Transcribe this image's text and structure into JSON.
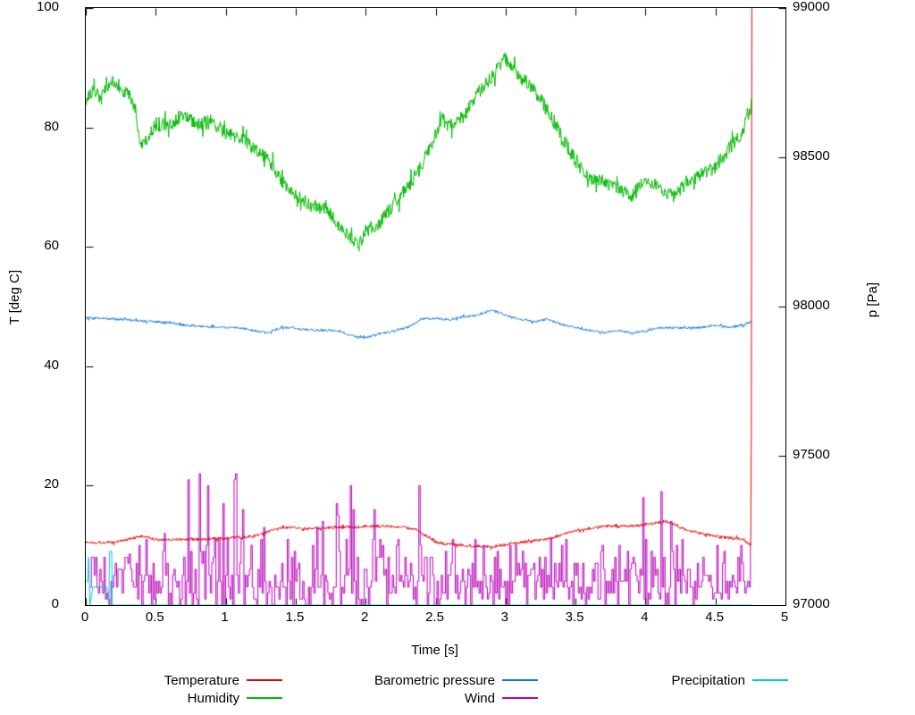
{
  "window": {
    "background": "#ffffff"
  },
  "chart_data": {
    "type": "line",
    "title": "",
    "xlabel": "Time [s]",
    "ylabel": "T [deg C]",
    "y2label": "p [Pa]",
    "xlim": [
      0,
      5
    ],
    "ylim": [
      0,
      100
    ],
    "y2lim": [
      97000,
      99000
    ],
    "grid": false,
    "xticks": {
      "values": [
        0,
        0.5,
        1,
        1.5,
        2,
        2.5,
        3,
        3.5,
        4,
        4.5,
        5
      ],
      "labels": [
        "0",
        "0.5",
        "1",
        "1.5",
        "2",
        "2.5",
        "3",
        "3.5",
        "4",
        "4.5",
        "5"
      ]
    },
    "yticks": {
      "values": [
        0,
        20,
        40,
        60,
        80,
        100
      ],
      "labels": [
        "0",
        "20",
        "40",
        "60",
        "80",
        "100"
      ]
    },
    "y2ticks": {
      "values": [
        97000,
        97500,
        98000,
        98500,
        99000
      ],
      "labels": [
        "97000",
        "97500",
        "98000",
        "98500",
        "99000"
      ]
    },
    "series": [
      {
        "name": "Temperature",
        "color": "#e60000",
        "axis": "y1",
        "style": "noisy-line",
        "noise": 0.25,
        "keypoints": [
          [
            0,
            10.5
          ],
          [
            0.2,
            10.5
          ],
          [
            0.4,
            11.5
          ],
          [
            0.5,
            11
          ],
          [
            0.8,
            11
          ],
          [
            1,
            11.2
          ],
          [
            1.2,
            11.5
          ],
          [
            1.4,
            13
          ],
          [
            1.6,
            12.8
          ],
          [
            1.8,
            13
          ],
          [
            2,
            13.2
          ],
          [
            2.2,
            13.2
          ],
          [
            2.35,
            12.8
          ],
          [
            2.5,
            10.5
          ],
          [
            2.7,
            10
          ],
          [
            2.9,
            9.8
          ],
          [
            3.1,
            10.5
          ],
          [
            3.3,
            11
          ],
          [
            3.5,
            12.5
          ],
          [
            3.7,
            13.2
          ],
          [
            3.9,
            13.2
          ],
          [
            4.15,
            14
          ],
          [
            4.3,
            12.5
          ],
          [
            4.5,
            11.5
          ],
          [
            4.7,
            11
          ],
          [
            4.74,
            10.2
          ],
          [
            4.755,
            10
          ],
          [
            4.76,
            100
          ]
        ]
      },
      {
        "name": "Humidity",
        "color": "#00b800",
        "axis": "y1",
        "style": "noisy-line",
        "noise": 1.2,
        "keypoints": [
          [
            0,
            84.5
          ],
          [
            0.05,
            86
          ],
          [
            0.1,
            85.5
          ],
          [
            0.15,
            87
          ],
          [
            0.2,
            88
          ],
          [
            0.25,
            86.5
          ],
          [
            0.3,
            85.5
          ],
          [
            0.35,
            83.5
          ],
          [
            0.4,
            76.5
          ],
          [
            0.45,
            78.5
          ],
          [
            0.5,
            80.5
          ],
          [
            0.6,
            80.5
          ],
          [
            0.7,
            82
          ],
          [
            0.8,
            80.5
          ],
          [
            0.9,
            81
          ],
          [
            1,
            79
          ],
          [
            1.1,
            78.5
          ],
          [
            1.2,
            76.5
          ],
          [
            1.3,
            75
          ],
          [
            1.4,
            71
          ],
          [
            1.5,
            68.5
          ],
          [
            1.6,
            67
          ],
          [
            1.7,
            66.5
          ],
          [
            1.8,
            64
          ],
          [
            1.9,
            61.5
          ],
          [
            1.95,
            60
          ],
          [
            2,
            62.5
          ],
          [
            2.1,
            64
          ],
          [
            2.2,
            67
          ],
          [
            2.3,
            70
          ],
          [
            2.4,
            73.5
          ],
          [
            2.5,
            79
          ],
          [
            2.55,
            81.5
          ],
          [
            2.6,
            80
          ],
          [
            2.7,
            82
          ],
          [
            2.8,
            85.5
          ],
          [
            2.9,
            88.5
          ],
          [
            3,
            91.5
          ],
          [
            3.1,
            88.5
          ],
          [
            3.2,
            86.5
          ],
          [
            3.3,
            83
          ],
          [
            3.4,
            78.5
          ],
          [
            3.5,
            74.5
          ],
          [
            3.6,
            71.5
          ],
          [
            3.7,
            71
          ],
          [
            3.8,
            70
          ],
          [
            3.9,
            68.5
          ],
          [
            4,
            71.5
          ],
          [
            4.1,
            70
          ],
          [
            4.2,
            68.5
          ],
          [
            4.3,
            71
          ],
          [
            4.4,
            72
          ],
          [
            4.5,
            73.5
          ],
          [
            4.6,
            76.5
          ],
          [
            4.7,
            79.5
          ],
          [
            4.76,
            84
          ]
        ]
      },
      {
        "name": "Barometric pressure",
        "color": "#1177dd",
        "axis": "y2",
        "style": "noisy-line",
        "noise": 4,
        "keypoints": [
          [
            0,
            97962
          ],
          [
            0.2,
            97958
          ],
          [
            0.4,
            97952
          ],
          [
            0.6,
            97946
          ],
          [
            0.7,
            97938
          ],
          [
            0.9,
            97932
          ],
          [
            1.1,
            97928
          ],
          [
            1.3,
            97912
          ],
          [
            1.4,
            97930
          ],
          [
            1.6,
            97922
          ],
          [
            1.8,
            97920
          ],
          [
            1.9,
            97902
          ],
          [
            2,
            97896
          ],
          [
            2.1,
            97908
          ],
          [
            2.3,
            97930
          ],
          [
            2.4,
            97958
          ],
          [
            2.5,
            97960
          ],
          [
            2.6,
            97956
          ],
          [
            2.7,
            97966
          ],
          [
            2.8,
            97972
          ],
          [
            2.9,
            97988
          ],
          [
            3,
            97972
          ],
          [
            3.1,
            97958
          ],
          [
            3.2,
            97950
          ],
          [
            3.3,
            97958
          ],
          [
            3.4,
            97940
          ],
          [
            3.6,
            97920
          ],
          [
            3.7,
            97912
          ],
          [
            3.8,
            97920
          ],
          [
            3.9,
            97912
          ],
          [
            4,
            97918
          ],
          [
            4.1,
            97928
          ],
          [
            4.4,
            97930
          ],
          [
            4.5,
            97938
          ],
          [
            4.6,
            97930
          ],
          [
            4.7,
            97938
          ],
          [
            4.76,
            97950
          ]
        ]
      },
      {
        "name": "Wind",
        "color": "#b800b8",
        "axis": "y1",
        "style": "spiky-steps",
        "base": 3,
        "x_start": 0.03,
        "x_end": 4.75,
        "envelope": [
          [
            0.03,
            8
          ],
          [
            0.3,
            8
          ],
          [
            0.45,
            16
          ],
          [
            0.55,
            24
          ],
          [
            0.7,
            30
          ],
          [
            0.9,
            34
          ],
          [
            1,
            26
          ],
          [
            1.1,
            22
          ],
          [
            1.25,
            20
          ],
          [
            1.4,
            22
          ],
          [
            1.5,
            26
          ],
          [
            1.7,
            28
          ],
          [
            1.9,
            24
          ],
          [
            2,
            30
          ],
          [
            2.1,
            30
          ],
          [
            2.25,
            28
          ],
          [
            2.4,
            28
          ],
          [
            2.55,
            16
          ],
          [
            2.7,
            10
          ],
          [
            2.85,
            12
          ],
          [
            3,
            10
          ],
          [
            3.2,
            10
          ],
          [
            3.35,
            14
          ],
          [
            3.5,
            25
          ],
          [
            3.65,
            20
          ],
          [
            3.8,
            22
          ],
          [
            3.95,
            24
          ],
          [
            4.1,
            24
          ],
          [
            4.25,
            18
          ],
          [
            4.4,
            18
          ],
          [
            4.55,
            20
          ],
          [
            4.65,
            22
          ],
          [
            4.75,
            14
          ]
        ]
      },
      {
        "name": "Precipitation",
        "color": "#00c8d0",
        "axis": "y1",
        "style": "polyline",
        "keypoints": [
          [
            0,
            4
          ],
          [
            0.015,
            4
          ],
          [
            0.02,
            8
          ],
          [
            0.03,
            0
          ],
          [
            0.05,
            3
          ],
          [
            0.15,
            3
          ],
          [
            0.165,
            0
          ],
          [
            0.17,
            9
          ],
          [
            0.185,
            9
          ],
          [
            0.19,
            0
          ],
          [
            4.76,
            0
          ]
        ]
      }
    ],
    "legend": {
      "position": "bottom",
      "rows": [
        [
          {
            "label": "Temperature",
            "color": "#e60000"
          },
          {
            "label": "Barometric pressure",
            "color": "#1177dd"
          },
          {
            "label": "Precipitation",
            "color": "#00c8d0"
          }
        ],
        [
          {
            "label": "Humidity",
            "color": "#00b800"
          },
          {
            "label": "Wind",
            "color": "#b800b8"
          },
          null
        ]
      ]
    }
  }
}
